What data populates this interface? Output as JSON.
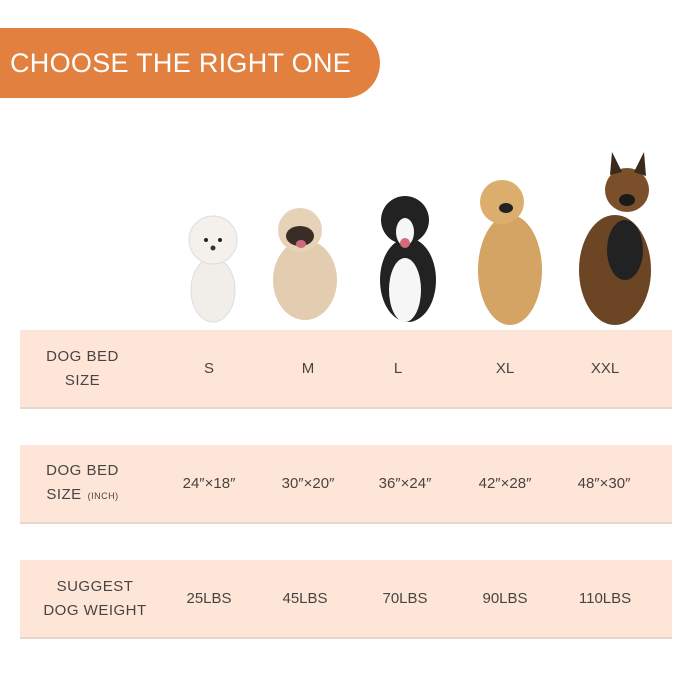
{
  "banner": {
    "title": "CHOOSE THE RIGHT ONE",
    "color": "#e2813f"
  },
  "dogs": [
    {
      "name": "poodle",
      "color": "#f1eeea"
    },
    {
      "name": "pug",
      "color": "#e3cdb0"
    },
    {
      "name": "border-collie",
      "color": "#222222"
    },
    {
      "name": "golden-retriever",
      "color": "#d4a464"
    },
    {
      "name": "german-shepherd",
      "color": "#6b4524"
    }
  ],
  "table": {
    "row_color": "#fde6d8",
    "rows": [
      {
        "label_line1": "DOG BED",
        "label_line2": "SIZE",
        "label_unit": "",
        "values": [
          "S",
          "M",
          "L",
          "XL",
          "XXL"
        ]
      },
      {
        "label_line1": "DOG BED",
        "label_line2": "SIZE",
        "label_unit": "(INCH)",
        "values": [
          "24″×18″",
          "30″×20″",
          "36″×24″",
          "42″×28″",
          "48″×30″"
        ]
      },
      {
        "label_line1": "SUGGEST",
        "label_line2": "DOG WEIGHT",
        "label_unit": "",
        "values": [
          "25LBS",
          "45LBS",
          "70LBS",
          "90LBS",
          "110LBS"
        ]
      }
    ]
  }
}
